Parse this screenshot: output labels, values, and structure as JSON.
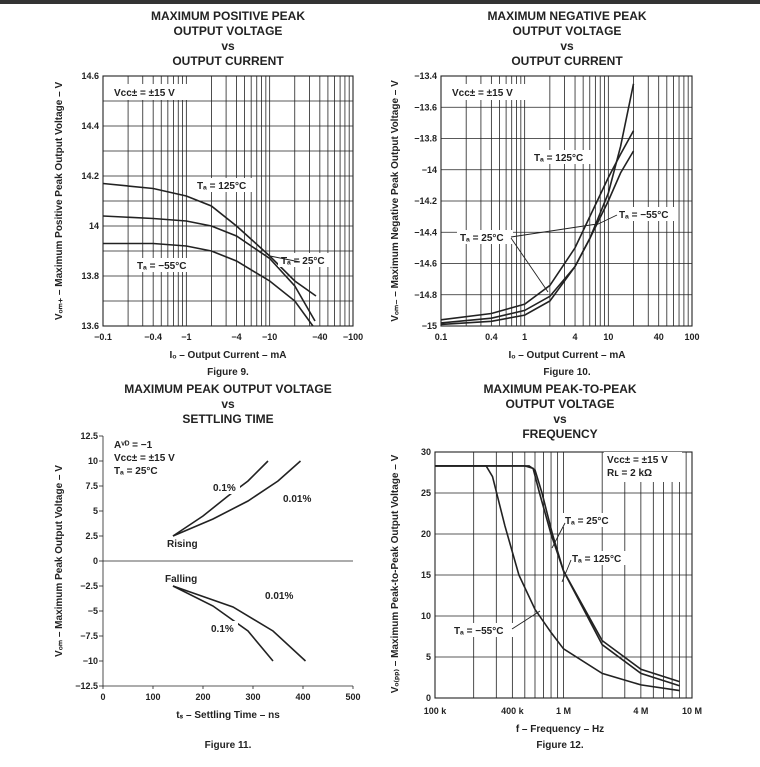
{
  "chart_data": [
    {
      "type": "line",
      "figure_label": "Figure 9.",
      "title_lines": [
        "MAXIMUM POSITIVE PEAK",
        "OUTPUT VOLTAGE",
        "vs",
        "OUTPUT CURRENT"
      ],
      "xlabel": "Iₒ – Output Current – mA",
      "ylabel": "Vₒₘ₊ – Maximum Positive Peak Output Voltage – V",
      "x_scale": "log",
      "x_ticks": [
        "−0.1",
        "−0.4",
        "−1",
        "−4",
        "−10",
        "−40",
        "−100"
      ],
      "y_ticks": [
        "13.6",
        "13.8",
        "14",
        "14.2",
        "14.4",
        "14.6"
      ],
      "ylim": [
        13.6,
        14.6
      ],
      "annotation": "Vᴄᴄ± = ±15 V",
      "series": [
        {
          "name": "Tₐ = 125°C",
          "x": [
            -0.1,
            -0.4,
            -1,
            -2,
            -4,
            -10,
            -20,
            -36
          ],
          "y": [
            14.17,
            14.15,
            14.12,
            14.08,
            14.0,
            13.88,
            13.78,
            13.72
          ]
        },
        {
          "name": "Tₐ = 25°C",
          "x": [
            -0.1,
            -0.4,
            -1,
            -2,
            -4,
            -10,
            -20,
            -35
          ],
          "y": [
            14.04,
            14.03,
            14.02,
            14.0,
            13.96,
            13.87,
            13.76,
            13.62
          ]
        },
        {
          "name": "Tₐ = −55°C",
          "x": [
            -0.1,
            -0.4,
            -1,
            -2,
            -4,
            -10,
            -20,
            -33
          ],
          "y": [
            13.93,
            13.93,
            13.92,
            13.9,
            13.86,
            13.78,
            13.7,
            13.6
          ]
        }
      ]
    },
    {
      "type": "line",
      "figure_label": "Figure 10.",
      "title_lines": [
        "MAXIMUM NEGATIVE PEAK",
        "OUTPUT VOLTAGE",
        "vs",
        "OUTPUT CURRENT"
      ],
      "xlabel": "Iₒ – Output Current – mA",
      "ylabel": "Vₒₘ₋ – Maximum Negative Peak Output Voltage – V",
      "x_scale": "log",
      "x_ticks": [
        "0.1",
        "0.4",
        "1",
        "4",
        "10",
        "40",
        "100"
      ],
      "y_ticks": [
        "−13.4",
        "−13.6",
        "−13.8",
        "−14",
        "−14.2",
        "−14.4",
        "−14.6",
        "−14.8",
        "−15"
      ],
      "ylim": [
        -15,
        -13.4
      ],
      "annotation": "Vᴄᴄ± = ±15 V",
      "series": [
        {
          "name": "Tₐ = 125°C",
          "x": [
            0.1,
            0.4,
            1,
            2,
            4,
            6,
            10,
            14,
            20
          ],
          "y": [
            -14.96,
            -14.92,
            -14.86,
            -14.74,
            -14.5,
            -14.3,
            -14.05,
            -13.9,
            -13.75
          ]
        },
        {
          "name": "Tₐ = 25°C",
          "x": [
            0.1,
            0.4,
            1,
            2,
            4,
            6,
            10,
            14,
            20
          ],
          "y": [
            -14.98,
            -14.95,
            -14.9,
            -14.81,
            -14.62,
            -14.44,
            -14.15,
            -13.85,
            -13.45
          ]
        },
        {
          "name": "Tₐ = −55°C",
          "x": [
            0.1,
            0.4,
            1,
            2,
            4,
            6,
            10,
            14,
            20
          ],
          "y": [
            -14.99,
            -14.97,
            -14.93,
            -14.84,
            -14.62,
            -14.44,
            -14.2,
            -14.02,
            -13.88
          ]
        }
      ]
    },
    {
      "type": "line",
      "figure_label": "Figure 11.",
      "title_lines": [
        "MAXIMUM PEAK OUTPUT VOLTAGE",
        "vs",
        "SETTLING TIME"
      ],
      "xlabel": "tₛ – Settling Time – ns",
      "ylabel": "Vₒₘ – Maximum Peak Output Voltage – V",
      "x_ticks": [
        "0",
        "100",
        "200",
        "300",
        "400",
        "500"
      ],
      "y_ticks": [
        "−12.5",
        "−10",
        "−7.5",
        "−5",
        "−2.5",
        "0",
        "2.5",
        "5",
        "7.5",
        "10",
        "12.5"
      ],
      "xlim": [
        0,
        500
      ],
      "ylim": [
        -12.5,
        12.5
      ],
      "annotations": [
        "Aᵛᴰ = −1",
        "Vᴄᴄ± = ±15 V",
        "Tₐ = 25°C"
      ],
      "labels": {
        "rising": "Rising",
        "falling": "Falling",
        "p01": "0.1%",
        "p001": "0.01%"
      },
      "series": [
        {
          "name": "Rising 0.1%",
          "x": [
            140,
            200,
            250,
            290,
            330
          ],
          "y": [
            2.5,
            4.5,
            6.5,
            8.0,
            10.0
          ]
        },
        {
          "name": "Rising 0.01%",
          "x": [
            140,
            220,
            290,
            350,
            395
          ],
          "y": [
            2.5,
            4.2,
            6.0,
            8.0,
            10.0
          ]
        },
        {
          "name": "Falling 0.1%",
          "x": [
            140,
            220,
            290,
            340
          ],
          "y": [
            -2.5,
            -4.5,
            -7.0,
            -10.0
          ]
        },
        {
          "name": "Falling 0.01%",
          "x": [
            140,
            260,
            340,
            405
          ],
          "y": [
            -2.5,
            -4.6,
            -7.0,
            -10.0
          ]
        }
      ]
    },
    {
      "type": "line",
      "figure_label": "Figure 12.",
      "title_lines": [
        "MAXIMUM PEAK-TO-PEAK",
        "OUTPUT VOLTAGE",
        "vs",
        "FREQUENCY"
      ],
      "xlabel": "f – Frequency – Hz",
      "ylabel": "Vₒ₍ₚₚ₎ – Maximum Peak-to-Peak Output Voltage – V",
      "x_scale": "log",
      "x_ticks": [
        "100 k",
        "400 k",
        "1 M",
        "4 M",
        "10 M"
      ],
      "y_ticks": [
        "0",
        "5",
        "10",
        "15",
        "20",
        "25",
        "30"
      ],
      "ylim": [
        0,
        30
      ],
      "annotations": [
        "Vᴄᴄ± = ±15 V",
        "Rʟ = 2 kΩ"
      ],
      "series": [
        {
          "name": "Tₐ = 25°C",
          "x": [
            100000,
            300000,
            500000,
            580000,
            650000,
            800000,
            1000000,
            2000000,
            4000000,
            8000000
          ],
          "y": [
            28.3,
            28.3,
            28.3,
            28.0,
            25.0,
            20.0,
            15.5,
            6.5,
            3.0,
            1.5
          ]
        },
        {
          "name": "Tₐ = 125°C",
          "x": [
            100000,
            300000,
            540000,
            600000,
            680000,
            820000,
            1000000,
            2000000,
            4000000,
            8000000
          ],
          "y": [
            28.3,
            28.3,
            28.3,
            27.8,
            25.0,
            20.0,
            15.5,
            7.0,
            3.5,
            2.0
          ]
        },
        {
          "name": "Tₐ = −55°C",
          "x": [
            100000,
            250000,
            280000,
            350000,
            450000,
            600000,
            800000,
            1000000,
            2000000,
            4000000,
            8000000
          ],
          "y": [
            28.3,
            28.3,
            27.0,
            21.0,
            15.0,
            10.8,
            8.0,
            6.0,
            3.0,
            1.6,
            0.9
          ]
        }
      ]
    }
  ],
  "annotations": {
    "vcc": "Vᴄᴄ± = ±15 V",
    "avd": "Aᵛᴰ = −1",
    "ta25": "Tₐ = 25°C",
    "ta125": "Tₐ = 125°C",
    "tam55": "Tₐ = −55°C",
    "rl": "Rʟ = 2 kΩ"
  }
}
